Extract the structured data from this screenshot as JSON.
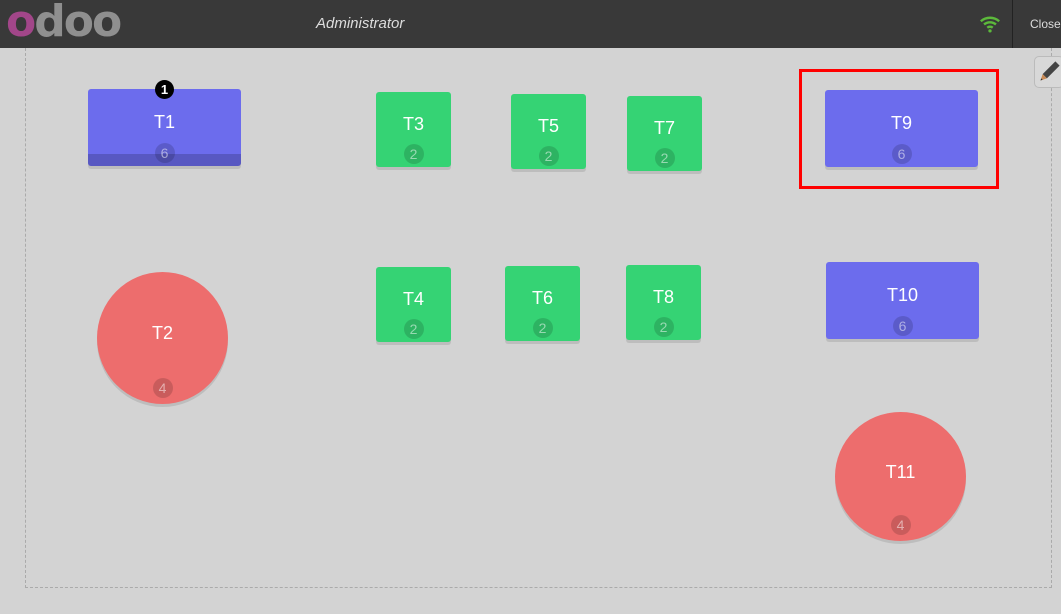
{
  "header": {
    "logo": "odoo",
    "user": "Administrator",
    "close_label": "Close",
    "wifi_icon": "wifi-icon",
    "wifi_color": "#5cb93b"
  },
  "floor": {
    "edit_icon": "pencil-icon",
    "selected_table": "T9"
  },
  "tables": [
    {
      "name": "T1",
      "seats": "6",
      "shape": "square",
      "color": "#6c6ced",
      "orders": "1"
    },
    {
      "name": "T2",
      "seats": "4",
      "shape": "round",
      "color": "#ed6d6d"
    },
    {
      "name": "T3",
      "seats": "2",
      "shape": "square",
      "color": "#35d374"
    },
    {
      "name": "T4",
      "seats": "2",
      "shape": "square",
      "color": "#35d374"
    },
    {
      "name": "T5",
      "seats": "2",
      "shape": "square",
      "color": "#35d374"
    },
    {
      "name": "T6",
      "seats": "2",
      "shape": "square",
      "color": "#35d374"
    },
    {
      "name": "T7",
      "seats": "2",
      "shape": "square",
      "color": "#35d374"
    },
    {
      "name": "T8",
      "seats": "2",
      "shape": "square",
      "color": "#35d374"
    },
    {
      "name": "T9",
      "seats": "6",
      "shape": "square",
      "color": "#6c6ced"
    },
    {
      "name": "T10",
      "seats": "6",
      "shape": "square",
      "color": "#6c6ced"
    },
    {
      "name": "T11",
      "seats": "4",
      "shape": "round",
      "color": "#ed6d6d"
    }
  ]
}
